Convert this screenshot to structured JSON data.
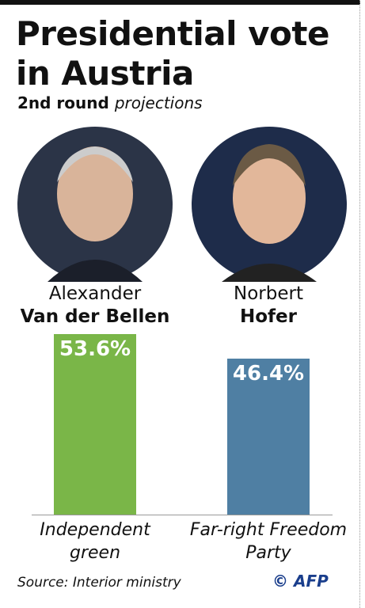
{
  "chart_data": {
    "type": "bar",
    "title": "Presidential vote in Austria",
    "subtitle": "2nd round",
    "subtitle_emphasis": "projections",
    "first_names": [
      "Alexander",
      "Norbert"
    ],
    "categories": [
      "Van der Bellen",
      "Hofer"
    ],
    "parties": [
      "Independent green",
      "Far-right Freedom Party"
    ],
    "values": [
      53.6,
      46.4
    ],
    "value_labels": [
      "53.6%",
      "46.4%"
    ],
    "colors": [
      "#7ab648",
      "#4f7fa3"
    ],
    "source": "Source: Interior ministry",
    "credit": "© AFP"
  }
}
